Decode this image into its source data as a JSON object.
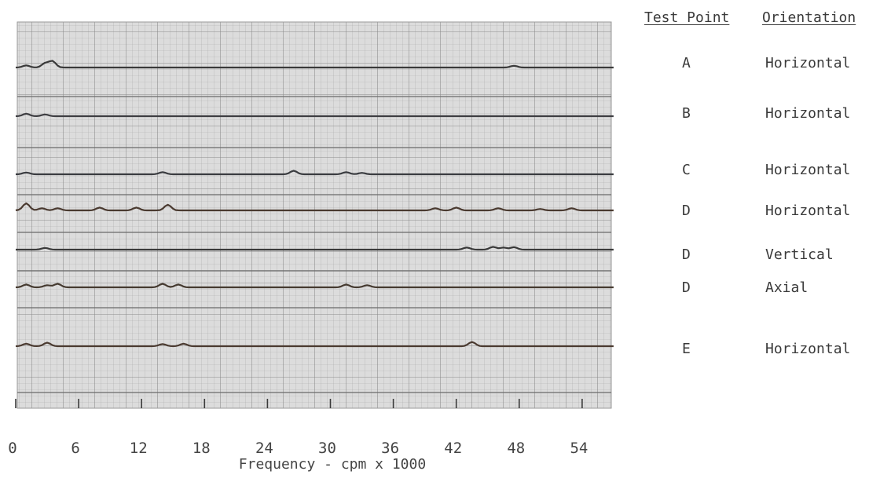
{
  "chart_data": {
    "type": "line",
    "xlabel": "Frequency - cpm x 1000",
    "xticks": [
      0,
      6,
      12,
      18,
      24,
      30,
      36,
      42,
      48,
      54
    ],
    "xlim": [
      0,
      57
    ],
    "legend_headers": {
      "test_point": "Test Point",
      "orientation": "Orientation"
    },
    "series": [
      {
        "test_point": "A",
        "orientation": "Horizontal",
        "peaks": [
          [
            1,
            0.3
          ],
          [
            2.8,
            0.6
          ],
          [
            3.5,
            0.9
          ],
          [
            47.5,
            0.25
          ]
        ]
      },
      {
        "test_point": "B",
        "orientation": "Horizontal",
        "peaks": [
          [
            1,
            0.35
          ],
          [
            2.8,
            0.25
          ]
        ]
      },
      {
        "test_point": "C",
        "orientation": "Horizontal",
        "peaks": [
          [
            1,
            0.25
          ],
          [
            14,
            0.3
          ],
          [
            26.5,
            0.5
          ],
          [
            31.5,
            0.3
          ],
          [
            33,
            0.2
          ]
        ]
      },
      {
        "test_point": "D",
        "orientation": "Horizontal",
        "peaks": [
          [
            1,
            1.0
          ],
          [
            2.5,
            0.3
          ],
          [
            4,
            0.3
          ],
          [
            8,
            0.4
          ],
          [
            11.5,
            0.4
          ],
          [
            14.5,
            0.8
          ],
          [
            40,
            0.3
          ],
          [
            42,
            0.4
          ],
          [
            46,
            0.3
          ],
          [
            50,
            0.2
          ],
          [
            53,
            0.3
          ]
        ]
      },
      {
        "test_point": "D",
        "orientation": "Vertical",
        "peaks": [
          [
            2.8,
            0.25
          ],
          [
            43,
            0.3
          ],
          [
            45.5,
            0.4
          ],
          [
            46.5,
            0.3
          ],
          [
            47.5,
            0.35
          ]
        ]
      },
      {
        "test_point": "D",
        "orientation": "Axial",
        "peaks": [
          [
            1,
            0.4
          ],
          [
            3,
            0.3
          ],
          [
            4,
            0.5
          ],
          [
            14,
            0.5
          ],
          [
            15.5,
            0.4
          ],
          [
            31.5,
            0.4
          ],
          [
            33.5,
            0.3
          ]
        ]
      },
      {
        "test_point": "E",
        "orientation": "Horizontal",
        "peaks": [
          [
            1,
            0.35
          ],
          [
            3,
            0.5
          ],
          [
            14,
            0.3
          ],
          [
            16,
            0.35
          ],
          [
            43.5,
            0.6
          ]
        ]
      }
    ]
  }
}
